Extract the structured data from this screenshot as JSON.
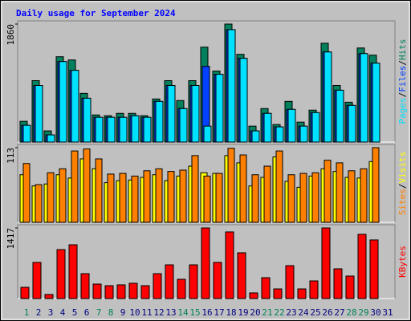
{
  "chart_data": [
    {
      "type": "overlap-bar",
      "title": "Daily usage for September 2024",
      "ylim": [
        0,
        1860
      ],
      "yticks": [
        1860
      ],
      "legend_separator": "/",
      "series": [
        {
          "name": "Pages",
          "color": "#00e0ff",
          "values": [
            264,
            892,
            113,
            1269,
            1131,
            691,
            390,
            390,
            390,
            415,
            390,
            641,
            892,
            528,
            892,
            251,
            1068,
            1772,
            1320,
            176,
            452,
            239,
            515,
            251,
            465,
            1420,
            817,
            578,
            1395,
            1244,
            0
          ]
        },
        {
          "name": "Files",
          "color": "#0040ff",
          "values": [
            264,
            892,
            113,
            1269,
            1131,
            691,
            390,
            390,
            390,
            415,
            390,
            641,
            892,
            528,
            892,
            1194,
            1068,
            1772,
            1320,
            176,
            452,
            239,
            515,
            251,
            465,
            1420,
            817,
            578,
            1395,
            1244,
            0
          ]
        },
        {
          "name": "Hits",
          "color": "#00805c",
          "values": [
            327,
            968,
            176,
            1345,
            1294,
            767,
            427,
            415,
            452,
            452,
            415,
            679,
            968,
            654,
            968,
            1496,
            1119,
            1860,
            1383,
            251,
            528,
            276,
            641,
            314,
            503,
            1558,
            892,
            628,
            1483,
            1370,
            0
          ]
        }
      ]
    },
    {
      "type": "overlap-bar",
      "ylim": [
        0,
        113
      ],
      "yticks": [
        113
      ],
      "legend_separator": "/",
      "series": [
        {
          "name": "Sites",
          "color": "#ff8000",
          "values": [
            89,
            57,
            75,
            81,
            108,
            111,
            96,
            73,
            74,
            70,
            78,
            81,
            77,
            79,
            101,
            70,
            74,
            112,
            102,
            72,
            85,
            108,
            72,
            74,
            75,
            94,
            90,
            78,
            81,
            113,
            0
          ]
        },
        {
          "name": "Visits",
          "color": "#ffff00",
          "values": [
            72,
            55,
            58,
            72,
            67,
            96,
            81,
            60,
            63,
            64,
            68,
            72,
            63,
            70,
            85,
            75,
            74,
            101,
            90,
            55,
            68,
            99,
            62,
            53,
            70,
            81,
            77,
            68,
            67,
            92,
            0
          ]
        }
      ]
    },
    {
      "type": "bar",
      "ylim": [
        0,
        1417
      ],
      "yticks": [
        1417
      ],
      "series": [
        {
          "name": "KBytes",
          "color": "#ff0000",
          "values": [
            225,
            725,
            81,
            982,
            1079,
            499,
            290,
            258,
            274,
            306,
            258,
            499,
            676,
            386,
            676,
            1417,
            725,
            1337,
            918,
            113,
            419,
            193,
            660,
            193,
            354,
            1417,
            596,
            451,
            1288,
            1176,
            0
          ]
        }
      ],
      "categories": [
        "1",
        "2",
        "3",
        "4",
        "5",
        "6",
        "7",
        "8",
        "9",
        "10",
        "11",
        "12",
        "13",
        "14",
        "15",
        "16",
        "17",
        "18",
        "19",
        "20",
        "21",
        "22",
        "23",
        "24",
        "25",
        "26",
        "27",
        "28",
        "29",
        "30",
        "31"
      ],
      "category_colors": [
        "#00805c",
        "#000080",
        "#000080",
        "#000080",
        "#000080",
        "#000080",
        "#00805c",
        "#00805c",
        "#000080",
        "#000080",
        "#000080",
        "#000080",
        "#000080",
        "#00805c",
        "#00805c",
        "#000080",
        "#000080",
        "#000080",
        "#000080",
        "#000080",
        "#00805c",
        "#00805c",
        "#000080",
        "#000080",
        "#000080",
        "#000080",
        "#000080",
        "#00805c",
        "#00805c",
        "#000080",
        "#000080"
      ]
    }
  ]
}
